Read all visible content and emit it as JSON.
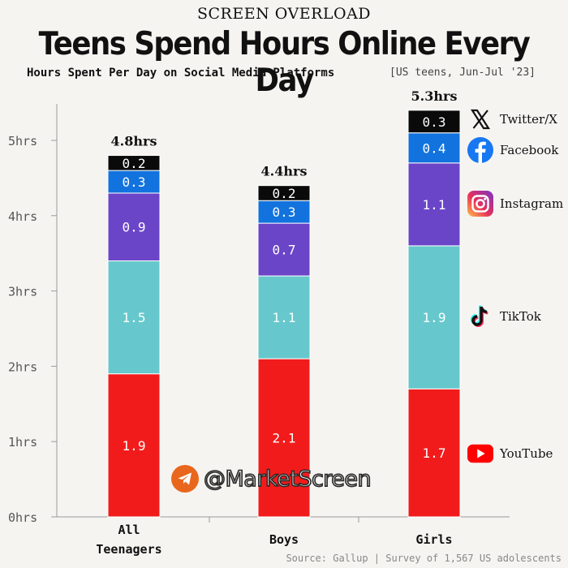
{
  "header": {
    "kicker": "SCREEN OVERLOAD",
    "title": "Teens Spend Hours Online Every Day",
    "subtitle": "Hours Spent Per Day on Social Media Platforms",
    "subnote": "[US teens, Jun-Jul '23]"
  },
  "chart_data": {
    "type": "bar",
    "stacked": true,
    "categories": [
      "All Teenagers",
      "Boys",
      "Girls"
    ],
    "category_lines": [
      [
        "All",
        "Teenagers"
      ],
      [
        "Boys"
      ],
      [
        "Girls"
      ]
    ],
    "totals": [
      "4.8hrs",
      "4.4hrs",
      "5.3hrs"
    ],
    "series": [
      {
        "name": "YouTube",
        "color": "#f21b1b",
        "values": [
          1.9,
          2.1,
          1.7
        ],
        "labels": [
          "1.9",
          "2.1",
          "1.7"
        ]
      },
      {
        "name": "TikTok",
        "color": "#66c8cc",
        "values": [
          1.5,
          1.1,
          1.9
        ],
        "labels": [
          "1.5",
          "1.1",
          "1.9"
        ]
      },
      {
        "name": "Instagram",
        "color": "#6b45c8",
        "values": [
          0.9,
          0.7,
          1.1
        ],
        "labels": [
          "0.9",
          "0.7",
          "1.1"
        ]
      },
      {
        "name": "Facebook",
        "color": "#1273de",
        "values": [
          0.3,
          0.3,
          0.4
        ],
        "labels": [
          "0.3",
          "0.3",
          "0.4"
        ]
      },
      {
        "name": "Twitter/X",
        "color": "#0a0a0a",
        "values": [
          0.2,
          0.2,
          0.3
        ],
        "labels": [
          "0.2",
          "0.2",
          "0.3"
        ]
      }
    ],
    "y_ticks": [
      0,
      1,
      2,
      3,
      4,
      5
    ],
    "y_tick_labels": [
      "0hrs",
      "1hrs",
      "2hrs",
      "3hrs",
      "4hrs",
      "5hrs"
    ],
    "ylim": [
      0,
      5.5
    ],
    "grid": false,
    "legend_placement": "right"
  },
  "legend": [
    {
      "name": "Twitter/X",
      "icon": "x-logo-icon"
    },
    {
      "name": "Facebook",
      "icon": "facebook-icon"
    },
    {
      "name": "Instagram",
      "icon": "instagram-icon"
    },
    {
      "name": "TikTok",
      "icon": "tiktok-icon"
    },
    {
      "name": "YouTube",
      "icon": "youtube-icon"
    }
  ],
  "watermark": {
    "text": "@MarketScreen",
    "icon": "telegram-icon"
  },
  "source": "Source: Gallup | Survey of 1,567 US adolescents"
}
